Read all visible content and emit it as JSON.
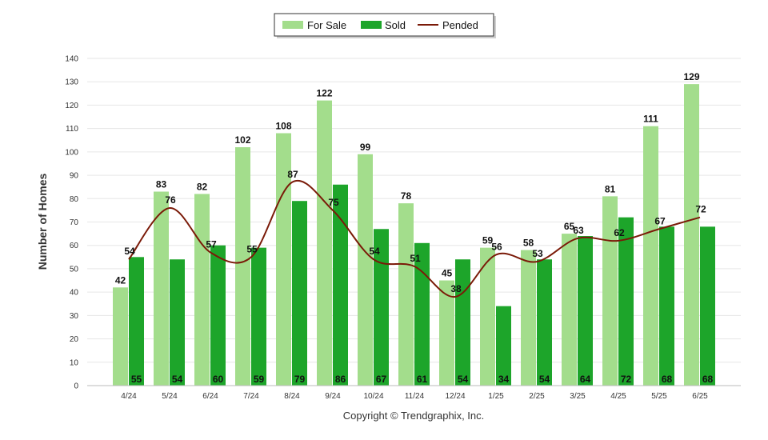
{
  "chart_data": {
    "type": "bar",
    "categories": [
      "4/24",
      "5/24",
      "6/24",
      "7/24",
      "8/24",
      "9/24",
      "10/24",
      "11/24",
      "12/24",
      "1/25",
      "2/25",
      "3/25",
      "4/25",
      "5/25",
      "6/25"
    ],
    "series": [
      {
        "name": "For Sale",
        "type": "bar",
        "color": "#a3dd8c",
        "values": [
          42,
          83,
          82,
          102,
          108,
          122,
          99,
          78,
          45,
          59,
          58,
          65,
          81,
          111,
          129
        ]
      },
      {
        "name": "Sold",
        "type": "bar",
        "color": "#1da52a",
        "values": [
          55,
          54,
          60,
          59,
          79,
          86,
          67,
          61,
          54,
          34,
          54,
          64,
          72,
          68,
          68
        ]
      },
      {
        "name": "Pended",
        "type": "line",
        "color": "#7a1a08",
        "values": [
          54,
          76,
          57,
          55,
          87,
          75,
          54,
          51,
          38,
          56,
          53,
          63,
          62,
          67,
          72
        ]
      }
    ],
    "ylabel": "Number of Homes",
    "ylim": [
      0,
      140
    ],
    "yticks": [
      0,
      10,
      20,
      30,
      40,
      50,
      60,
      70,
      80,
      90,
      100,
      110,
      120,
      130,
      140
    ],
    "legend_position": "top-center",
    "grid": true
  },
  "footer": {
    "copyright": "Copyright © Trendgraphix, Inc."
  }
}
